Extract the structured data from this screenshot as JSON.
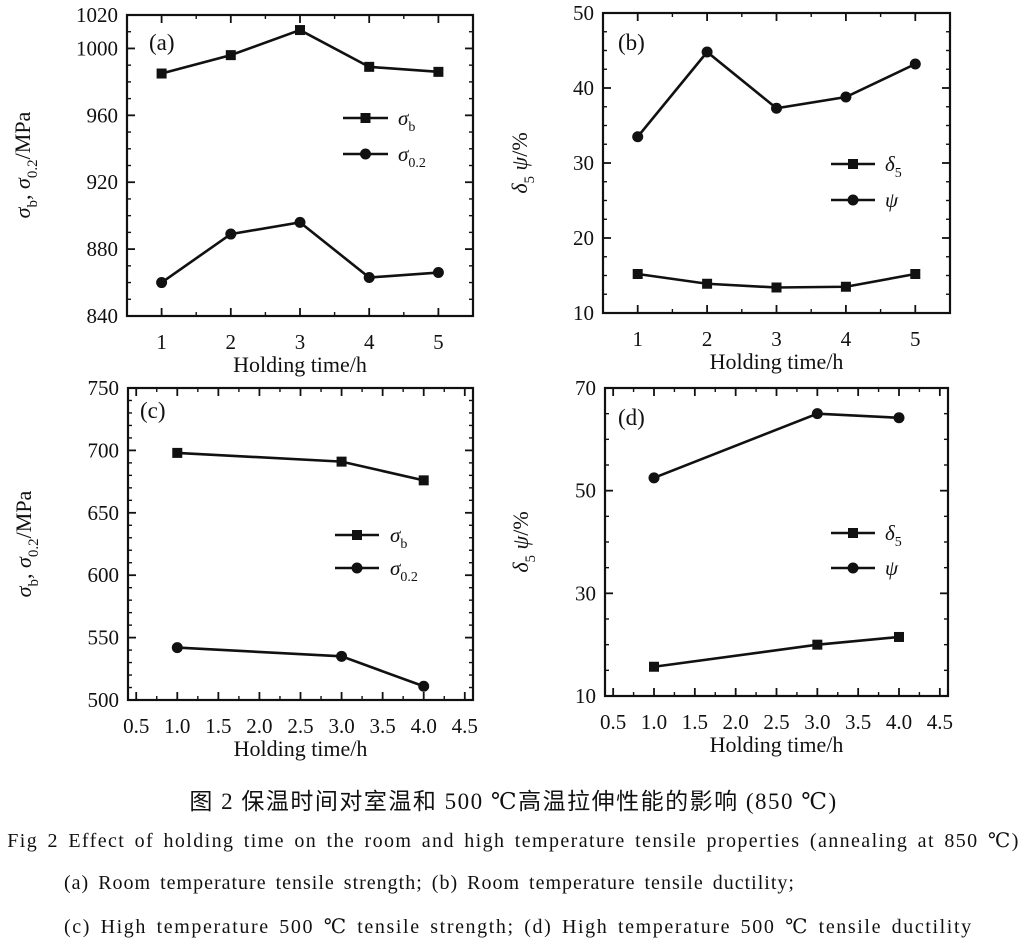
{
  "figure": {
    "ink_color": "#111111",
    "background_color": "#ffffff",
    "panels": [
      "(a)",
      "(b)",
      "(c)",
      "(d)"
    ]
  },
  "captions": {
    "chinese": "图 2  保温时间对室温和 500 ℃高温拉伸性能的影响 (850 ℃)",
    "english": "Fig 2   Effect of holding time on the room and high temperature tensile properties (annealing at 850 ℃)",
    "sub_ab": "(a) Room temperature tensile strength;  (b) Room temperature tensile ductility;",
    "sub_cd": "(c) High temperature 500 ℃ tensile strength;  (d) High temperature 500 ℃ tensile ductility"
  },
  "chart_data": [
    {
      "id": "a",
      "type": "line",
      "panel_label": "(a)",
      "xlabel": "Holding time/h",
      "ylabel": "σb, σ0.2/MPa",
      "ylabel_segments": [
        {
          "t": "σ",
          "it": true
        },
        {
          "t": "b",
          "sub": true
        },
        {
          "t": ", "
        },
        {
          "t": "σ",
          "it": true
        },
        {
          "t": "0.2",
          "sub": true
        },
        {
          "t": "/MPa"
        }
      ],
      "xlim": [
        0.5,
        5.5
      ],
      "ylim": [
        840,
        1020
      ],
      "xtick_values": [
        1,
        2,
        3,
        4,
        5
      ],
      "xticks": [
        "1",
        "2",
        "3",
        "4",
        "5"
      ],
      "x_minor_step": 0.5,
      "ytick_values": [
        840,
        880,
        920,
        960,
        1000,
        1020
      ],
      "yticks": [
        "840",
        "880",
        "920",
        "960",
        "1000",
        "1020"
      ],
      "y_minor_step": 10,
      "grid": false,
      "legend_position": "center-right",
      "series": [
        {
          "name": "σb",
          "name_segments": [
            {
              "t": "σ",
              "it": true
            },
            {
              "t": "b",
              "sub": true
            }
          ],
          "marker": "square",
          "x": [
            1,
            2,
            3,
            4,
            5
          ],
          "y": [
            985,
            996,
            1011,
            989,
            986
          ]
        },
        {
          "name": "σ0.2",
          "name_segments": [
            {
              "t": "σ",
              "it": true
            },
            {
              "t": "0.2",
              "sub": true
            }
          ],
          "marker": "circle",
          "x": [
            1,
            2,
            3,
            4,
            5
          ],
          "y": [
            860,
            889,
            896,
            863,
            866
          ]
        }
      ]
    },
    {
      "id": "b",
      "type": "line",
      "panel_label": "(b)",
      "xlabel": "Holding time/h",
      "ylabel": "δ5 ψ/%",
      "ylabel_segments": [
        {
          "t": "δ",
          "it": true
        },
        {
          "t": "5",
          "sub": true
        },
        {
          "t": " "
        },
        {
          "t": "ψ",
          "it": true
        },
        {
          "t": "/%"
        }
      ],
      "xlim": [
        0.5,
        5.5
      ],
      "ylim": [
        10,
        50
      ],
      "xtick_values": [
        1,
        2,
        3,
        4,
        5
      ],
      "xticks": [
        "1",
        "2",
        "3",
        "4",
        "5"
      ],
      "x_minor_step": 0.5,
      "ytick_values": [
        10,
        20,
        30,
        40,
        50
      ],
      "yticks": [
        "10",
        "20",
        "30",
        "40",
        "50"
      ],
      "y_minor_step": 2.5,
      "grid": false,
      "legend_position": "center-right",
      "series": [
        {
          "name": "δ5",
          "name_segments": [
            {
              "t": "δ",
              "it": true
            },
            {
              "t": "5",
              "sub": true
            }
          ],
          "marker": "square",
          "x": [
            1,
            2,
            3,
            4,
            5
          ],
          "y": [
            15.2,
            13.9,
            13.4,
            13.5,
            15.2
          ]
        },
        {
          "name": "ψ",
          "name_segments": [
            {
              "t": "ψ",
              "it": true
            }
          ],
          "marker": "circle",
          "x": [
            1,
            2,
            3,
            4,
            5
          ],
          "y": [
            33.5,
            44.8,
            37.3,
            38.8,
            43.2
          ]
        }
      ]
    },
    {
      "id": "c",
      "type": "line",
      "panel_label": "(c)",
      "xlabel": "Holding time/h",
      "ylabel": "σb, σ0.2/MPa",
      "ylabel_segments": [
        {
          "t": "σ",
          "it": true
        },
        {
          "t": "b",
          "sub": true
        },
        {
          "t": ", "
        },
        {
          "t": "σ",
          "it": true
        },
        {
          "t": "0.2",
          "sub": true
        },
        {
          "t": "/MPa"
        }
      ],
      "xlim": [
        0.4,
        4.6
      ],
      "ylim": [
        500,
        750
      ],
      "xtick_values": [
        0.5,
        1.0,
        1.5,
        2.0,
        2.5,
        3.0,
        3.5,
        4.0,
        4.5
      ],
      "xticks": [
        "0.5",
        "1.0",
        "1.5",
        "2.0",
        "2.5",
        "3.0",
        "3.5",
        "4.0",
        "4.5"
      ],
      "x_minor_step": 0.25,
      "ytick_values": [
        500,
        550,
        600,
        650,
        700,
        750
      ],
      "yticks": [
        "500",
        "550",
        "600",
        "650",
        "700",
        "750"
      ],
      "y_minor_step": 10,
      "grid": false,
      "legend_position": "center-right",
      "series": [
        {
          "name": "σb",
          "name_segments": [
            {
              "t": "σ",
              "it": true
            },
            {
              "t": "b",
              "sub": true
            }
          ],
          "marker": "square",
          "x": [
            1.0,
            3.0,
            4.0
          ],
          "y": [
            698,
            691,
            676
          ]
        },
        {
          "name": "σ0.2",
          "name_segments": [
            {
              "t": "σ",
              "it": true
            },
            {
              "t": "0.2",
              "sub": true
            }
          ],
          "marker": "circle",
          "x": [
            1.0,
            3.0,
            4.0
          ],
          "y": [
            542,
            535,
            511
          ]
        }
      ]
    },
    {
      "id": "d",
      "type": "line",
      "panel_label": "(d)",
      "xlabel": "Holding time/h",
      "ylabel": "δ5 ψ/%",
      "ylabel_segments": [
        {
          "t": "δ",
          "it": true
        },
        {
          "t": "5",
          "sub": true
        },
        {
          "t": " "
        },
        {
          "t": "ψ",
          "it": true
        },
        {
          "t": "/%"
        }
      ],
      "xlim": [
        0.4,
        4.6
      ],
      "ylim": [
        10,
        70
      ],
      "xtick_values": [
        0.5,
        1.0,
        1.5,
        2.0,
        2.5,
        3.0,
        3.5,
        4.0,
        4.5
      ],
      "xticks": [
        "0.5",
        "1.0",
        "1.5",
        "2.0",
        "2.5",
        "3.0",
        "3.5",
        "4.0",
        "4.5"
      ],
      "x_minor_step": 0.25,
      "ytick_values": [
        10,
        30,
        50,
        70
      ],
      "yticks": [
        "10",
        "30",
        "50",
        "70"
      ],
      "y_minor_step": 5,
      "grid": false,
      "legend_position": "center-right",
      "series": [
        {
          "name": "δ5",
          "name_segments": [
            {
              "t": "δ",
              "it": true
            },
            {
              "t": "5",
              "sub": true
            }
          ],
          "marker": "square",
          "x": [
            1.0,
            3.0,
            4.0
          ],
          "y": [
            15.7,
            20.0,
            21.5
          ]
        },
        {
          "name": "ψ",
          "name_segments": [
            {
              "t": "ψ",
              "it": true
            }
          ],
          "marker": "circle",
          "x": [
            1.0,
            3.0,
            4.0
          ],
          "y": [
            52.5,
            65.0,
            64.2
          ]
        }
      ]
    }
  ]
}
